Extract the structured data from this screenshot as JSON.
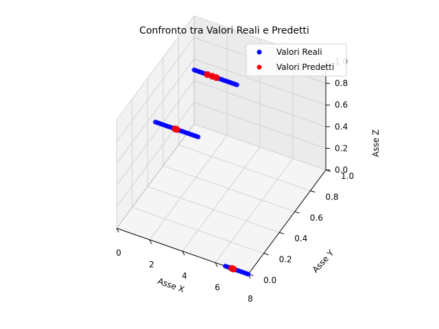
{
  "chart_data": {
    "type": "scatter",
    "projection": "3d",
    "title": "Confronto tra Valori Reali e Predetti",
    "xlabel": "Asse X",
    "ylabel": "Asse Y",
    "zlabel": "Asse Z",
    "xlim": [
      0,
      8
    ],
    "ylim": [
      0,
      1
    ],
    "zlim": [
      0,
      1
    ],
    "xticks": [
      "0",
      "2",
      "4",
      "6",
      "8"
    ],
    "yticks": [
      "0.0",
      "0.2",
      "0.4",
      "0.6",
      "0.8",
      "1.0"
    ],
    "zticks": [
      "0.0",
      "0.2",
      "0.4",
      "0.6",
      "0.8",
      "1.0"
    ],
    "grid": true,
    "legend": "top-right",
    "series": [
      {
        "name": "Valori Reali",
        "color": "#0000ff",
        "segments": [
          {
            "x": [
              0,
              2.6
            ],
            "y": [
              1.0,
              1.0
            ],
            "z": [
              0.5,
              0.5
            ],
            "count": 26
          },
          {
            "x": [
              0,
              2.6
            ],
            "y": [
              0.5,
              0.5
            ],
            "z": [
              0.5,
              0.5
            ],
            "count": 26
          },
          {
            "x": [
              6.6,
              8
            ],
            "y": [
              0.0,
              0.0
            ],
            "z": [
              0.0,
              0.0
            ],
            "count": 14
          }
        ]
      },
      {
        "name": "Valori Predetti",
        "color": "#ff0000",
        "points": [
          {
            "x": 0.8,
            "y": 1.0,
            "z": 0.5
          },
          {
            "x": 1.1,
            "y": 1.0,
            "z": 0.5
          },
          {
            "x": 1.35,
            "y": 1.0,
            "z": 0.5
          },
          {
            "x": 1.2,
            "y": 0.5,
            "z": 0.5
          },
          {
            "x": 1.3,
            "y": 0.5,
            "z": 0.5
          },
          {
            "x": 7.0,
            "y": 0.0,
            "z": 0.0
          },
          {
            "x": 7.1,
            "y": 0.0,
            "z": 0.0
          }
        ]
      }
    ]
  }
}
